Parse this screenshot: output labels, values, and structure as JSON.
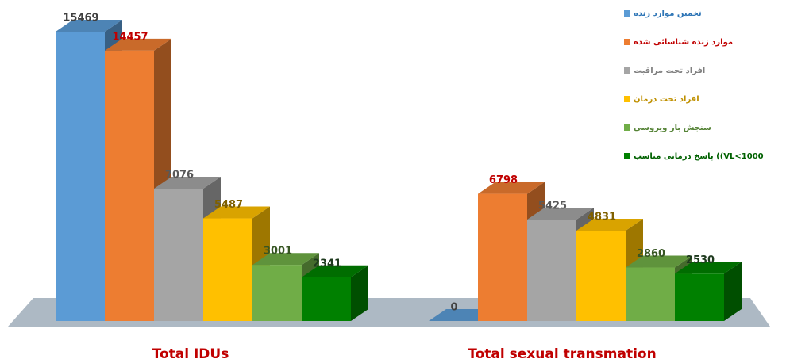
{
  "chart_data": {
    "type": "bar3d",
    "categories": [
      "Total IDUs",
      "Total sexual transmation"
    ],
    "category_color": "#c00000",
    "series": [
      {
        "name": "تخمین موارد زنده",
        "color": "#5b9bd5",
        "legend_color": "#2e75b6",
        "label_color": "#404040",
        "values": [
          15469,
          0
        ]
      },
      {
        "name": "موارد زنده شناسائی شده",
        "color": "#ed7d31",
        "legend_color": "#c00000",
        "label_color": "#c00000",
        "values": [
          14457,
          6798
        ]
      },
      {
        "name": "افراد تحت مراقبت",
        "color": "#a5a5a5",
        "legend_color": "#7f7f7f",
        "label_color": "#595959",
        "values": [
          7076,
          5425
        ]
      },
      {
        "name": "افراد تحت درمان",
        "color": "#ffc000",
        "legend_color": "#bf9000",
        "label_color": "#7f6000",
        "values": [
          5487,
          4831
        ]
      },
      {
        "name": "سنجش بار ویروسی",
        "color": "#70ad47",
        "legend_color": "#548235",
        "label_color": "#375623",
        "values": [
          3001,
          2860
        ]
      },
      {
        "name": "پاسخ درمانی مناسب ((VL<1000",
        "color": "#008000",
        "legend_color": "#006100",
        "label_color": "#1e3a1e",
        "values": [
          2341,
          2530
        ]
      }
    ]
  }
}
